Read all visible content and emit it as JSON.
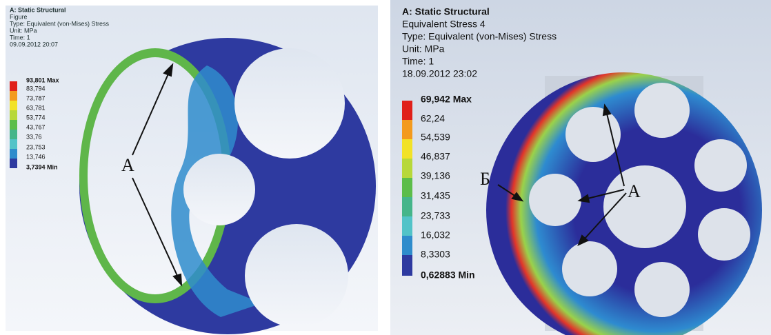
{
  "left_panel": {
    "header": [
      "A: Static Structural",
      "Figure",
      "Type: Equivalent (von-Mises) Stress",
      "Unit: MPa",
      "Time: 1",
      "09.09.2012 20:07"
    ],
    "legend": [
      "93,801 Max",
      "83,794",
      "73,787",
      "63,781",
      "53,774",
      "43,767",
      "33,76",
      "23,753",
      "13,746",
      "3,7394 Min"
    ],
    "annotations": [
      "A"
    ]
  },
  "right_panel": {
    "header": [
      "A: Static Structural",
      "Equivalent Stress 4",
      "Type: Equivalent (von-Mises) Stress",
      "Unit: MPa",
      "Time: 1",
      "18.09.2012 23:02"
    ],
    "legend": [
      "69,942 Max",
      "62,24",
      "54,539",
      "46,837",
      "39,136",
      "31,435",
      "23,733",
      "16,032",
      "8,3303",
      "0,62883 Min"
    ],
    "annotations": [
      "Б",
      "A"
    ]
  }
}
